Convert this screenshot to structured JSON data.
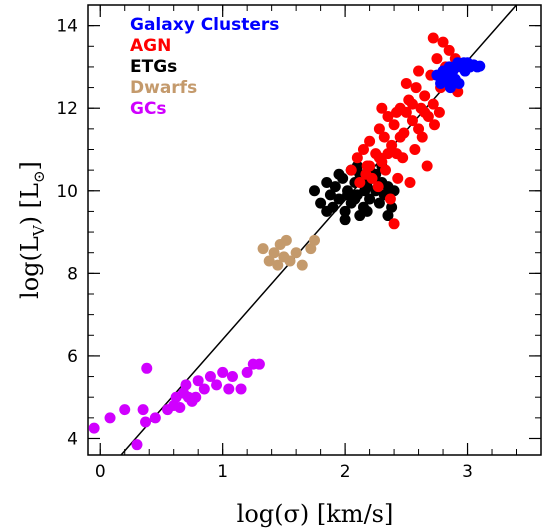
{
  "chart_data": {
    "type": "scatter",
    "title": "",
    "xlabel": "log(σ) [km/s]",
    "ylabel": "log(L",
    "ylabel_sub": "V",
    "ylabel_unit": ") [L",
    "ylabel_sun": "⊙",
    "ylabel_end": "]",
    "xlim": [
      -0.1,
      3.6
    ],
    "ylim": [
      3.6,
      14.5
    ],
    "xticks": [
      0,
      1,
      2,
      3
    ],
    "yticks": [
      4,
      6,
      8,
      10,
      12,
      14
    ],
    "grid": false,
    "legend_position": "top-left",
    "fit_line": {
      "x": [
        0.17,
        3.4
      ],
      "y": [
        3.6,
        14.5
      ],
      "color": "#000000"
    },
    "series": [
      {
        "name": "Galaxy Clusters",
        "color": "#0000ff",
        "points": [
          [
            2.78,
            12.6
          ],
          [
            2.8,
            12.9
          ],
          [
            2.82,
            12.8
          ],
          [
            2.85,
            13.0
          ],
          [
            2.88,
            12.9
          ],
          [
            2.9,
            12.7
          ],
          [
            2.92,
            13.1
          ],
          [
            2.95,
            13.0
          ],
          [
            2.98,
            12.9
          ],
          [
            3.0,
            13.1
          ],
          [
            3.02,
            13.0
          ],
          [
            3.05,
            13.05
          ],
          [
            3.08,
            13.0
          ],
          [
            3.1,
            13.02
          ],
          [
            2.86,
            12.5
          ],
          [
            2.93,
            12.6
          ],
          [
            2.97,
            13.1
          ],
          [
            2.75,
            12.8
          ],
          [
            2.83,
            12.7
          ],
          [
            2.9,
            13.0
          ]
        ]
      },
      {
        "name": "AGN",
        "color": "#ff0000",
        "points": [
          [
            2.05,
            10.5
          ],
          [
            2.1,
            10.8
          ],
          [
            2.15,
            11.0
          ],
          [
            2.18,
            10.6
          ],
          [
            2.2,
            11.2
          ],
          [
            2.25,
            10.9
          ],
          [
            2.28,
            11.5
          ],
          [
            2.3,
            10.7
          ],
          [
            2.32,
            11.3
          ],
          [
            2.35,
            11.8
          ],
          [
            2.38,
            11.1
          ],
          [
            2.4,
            11.6
          ],
          [
            2.42,
            10.9
          ],
          [
            2.45,
            12.0
          ],
          [
            2.48,
            11.4
          ],
          [
            2.5,
            11.9
          ],
          [
            2.52,
            12.2
          ],
          [
            2.55,
            11.7
          ],
          [
            2.58,
            12.5
          ],
          [
            2.6,
            11.5
          ],
          [
            2.62,
            12.0
          ],
          [
            2.65,
            12.3
          ],
          [
            2.68,
            11.8
          ],
          [
            2.7,
            12.8
          ],
          [
            2.72,
            12.1
          ],
          [
            2.75,
            13.2
          ],
          [
            2.78,
            12.5
          ],
          [
            2.8,
            13.6
          ],
          [
            2.82,
            13.0
          ],
          [
            2.85,
            13.4
          ],
          [
            2.88,
            12.6
          ],
          [
            2.9,
            13.2
          ],
          [
            2.92,
            12.4
          ],
          [
            2.95,
            13.0
          ],
          [
            2.22,
            10.3
          ],
          [
            2.27,
            10.1
          ],
          [
            2.33,
            10.5
          ],
          [
            2.37,
            9.8
          ],
          [
            2.43,
            10.3
          ],
          [
            2.47,
            10.8
          ],
          [
            2.53,
            10.2
          ],
          [
            2.57,
            11.0
          ],
          [
            2.63,
            11.3
          ],
          [
            2.67,
            10.6
          ],
          [
            2.73,
            11.6
          ],
          [
            2.77,
            11.9
          ],
          [
            2.12,
            10.2
          ],
          [
            2.17,
            10.4
          ],
          [
            2.4,
            9.2
          ],
          [
            2.72,
            13.7
          ],
          [
            2.3,
            12.0
          ],
          [
            2.5,
            12.6
          ],
          [
            2.55,
            12.1
          ],
          [
            2.6,
            12.9
          ],
          [
            2.45,
            11.3
          ],
          [
            2.35,
            10.9
          ],
          [
            2.65,
            11.9
          ],
          [
            2.2,
            10.6
          ],
          [
            2.28,
            10.8
          ],
          [
            2.42,
            11.9
          ]
        ]
      },
      {
        "name": "ETGs",
        "color": "#000000",
        "points": [
          [
            1.75,
            10.0
          ],
          [
            1.8,
            9.7
          ],
          [
            1.85,
            10.2
          ],
          [
            1.88,
            9.9
          ],
          [
            1.9,
            9.6
          ],
          [
            1.92,
            10.1
          ],
          [
            1.95,
            9.8
          ],
          [
            1.98,
            10.3
          ],
          [
            2.0,
            9.5
          ],
          [
            2.02,
            10.0
          ],
          [
            2.05,
            9.7
          ],
          [
            2.08,
            10.2
          ],
          [
            2.1,
            9.9
          ],
          [
            2.12,
            10.4
          ],
          [
            2.15,
            9.6
          ],
          [
            2.18,
            10.1
          ],
          [
            2.2,
            9.8
          ],
          [
            2.22,
            10.3
          ],
          [
            2.25,
            10.0
          ],
          [
            2.28,
            9.7
          ],
          [
            2.3,
            10.2
          ],
          [
            2.32,
            9.9
          ],
          [
            2.35,
            9.4
          ],
          [
            2.38,
            9.6
          ],
          [
            2.0,
            9.3
          ],
          [
            2.05,
            10.5
          ],
          [
            2.1,
            10.6
          ],
          [
            2.15,
            10.3
          ],
          [
            2.2,
            10.5
          ],
          [
            2.25,
            10.4
          ],
          [
            2.3,
            10.6
          ],
          [
            2.35,
            10.1
          ],
          [
            2.4,
            10.0
          ],
          [
            1.95,
            10.4
          ],
          [
            1.85,
            9.5
          ],
          [
            2.12,
            9.4
          ],
          [
            2.18,
            9.5
          ],
          [
            2.02,
            9.9
          ],
          [
            2.08,
            9.8
          ],
          [
            2.16,
            10.0
          ]
        ]
      },
      {
        "name": "Dwarfs",
        "color": "#c49a6c",
        "points": [
          [
            1.33,
            8.6
          ],
          [
            1.38,
            8.3
          ],
          [
            1.42,
            8.5
          ],
          [
            1.45,
            8.2
          ],
          [
            1.5,
            8.4
          ],
          [
            1.52,
            8.8
          ],
          [
            1.55,
            8.3
          ],
          [
            1.6,
            8.5
          ],
          [
            1.65,
            8.2
          ],
          [
            1.72,
            8.6
          ],
          [
            1.75,
            8.8
          ],
          [
            1.47,
            8.7
          ]
        ]
      },
      {
        "name": "GCs",
        "color": "#d000ff",
        "points": [
          [
            -0.05,
            4.25
          ],
          [
            0.08,
            4.5
          ],
          [
            0.2,
            4.7
          ],
          [
            0.3,
            3.85
          ],
          [
            0.35,
            4.7
          ],
          [
            0.37,
            4.4
          ],
          [
            0.45,
            4.5
          ],
          [
            0.55,
            4.7
          ],
          [
            0.6,
            4.8
          ],
          [
            0.62,
            5.0
          ],
          [
            0.65,
            4.75
          ],
          [
            0.7,
            5.3
          ],
          [
            0.72,
            5.0
          ],
          [
            0.75,
            4.9
          ],
          [
            0.8,
            5.4
          ],
          [
            0.85,
            5.2
          ],
          [
            0.9,
            5.5
          ],
          [
            0.95,
            5.3
          ],
          [
            1.0,
            5.6
          ],
          [
            1.05,
            5.2
          ],
          [
            1.08,
            5.5
          ],
          [
            1.15,
            5.2
          ],
          [
            1.2,
            5.6
          ],
          [
            1.25,
            5.8
          ],
          [
            1.3,
            5.8
          ],
          [
            0.38,
            5.7
          ],
          [
            0.68,
            5.1
          ],
          [
            0.78,
            5.0
          ]
        ]
      }
    ]
  }
}
